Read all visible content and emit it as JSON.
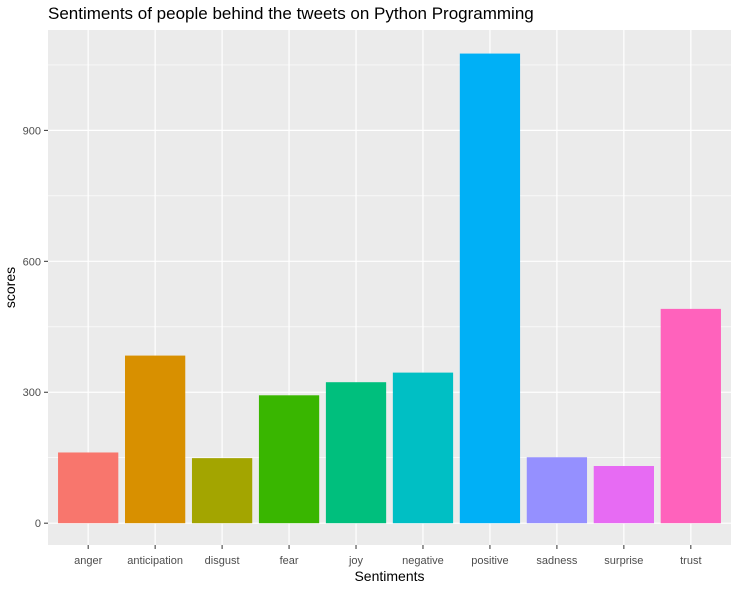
{
  "chart_data": {
    "type": "bar",
    "title": "Sentiments of people behind the tweets on Python Programming",
    "xlabel": "Sentiments",
    "ylabel": "scores",
    "categories": [
      "anger",
      "anticipation",
      "disgust",
      "fear",
      "joy",
      "negative",
      "positive",
      "sadness",
      "surprise",
      "trust"
    ],
    "values": [
      162,
      384,
      149,
      293,
      323,
      345,
      1076,
      151,
      131,
      491
    ],
    "colors": [
      "#F8766D",
      "#D89000",
      "#A3A500",
      "#39B600",
      "#00BF7D",
      "#00BFC4",
      "#00B0F6",
      "#9590FF",
      "#E76BF3",
      "#FF62BC"
    ],
    "ylim": [
      -50,
      1130
    ],
    "yticks": [
      0,
      300,
      600,
      900
    ],
    "ytick_labels": [
      "0",
      "300",
      "600",
      "900"
    ],
    "grid": true,
    "legend": "none",
    "panel_background": "#EBEBEB",
    "grid_color": "#FFFFFF"
  }
}
